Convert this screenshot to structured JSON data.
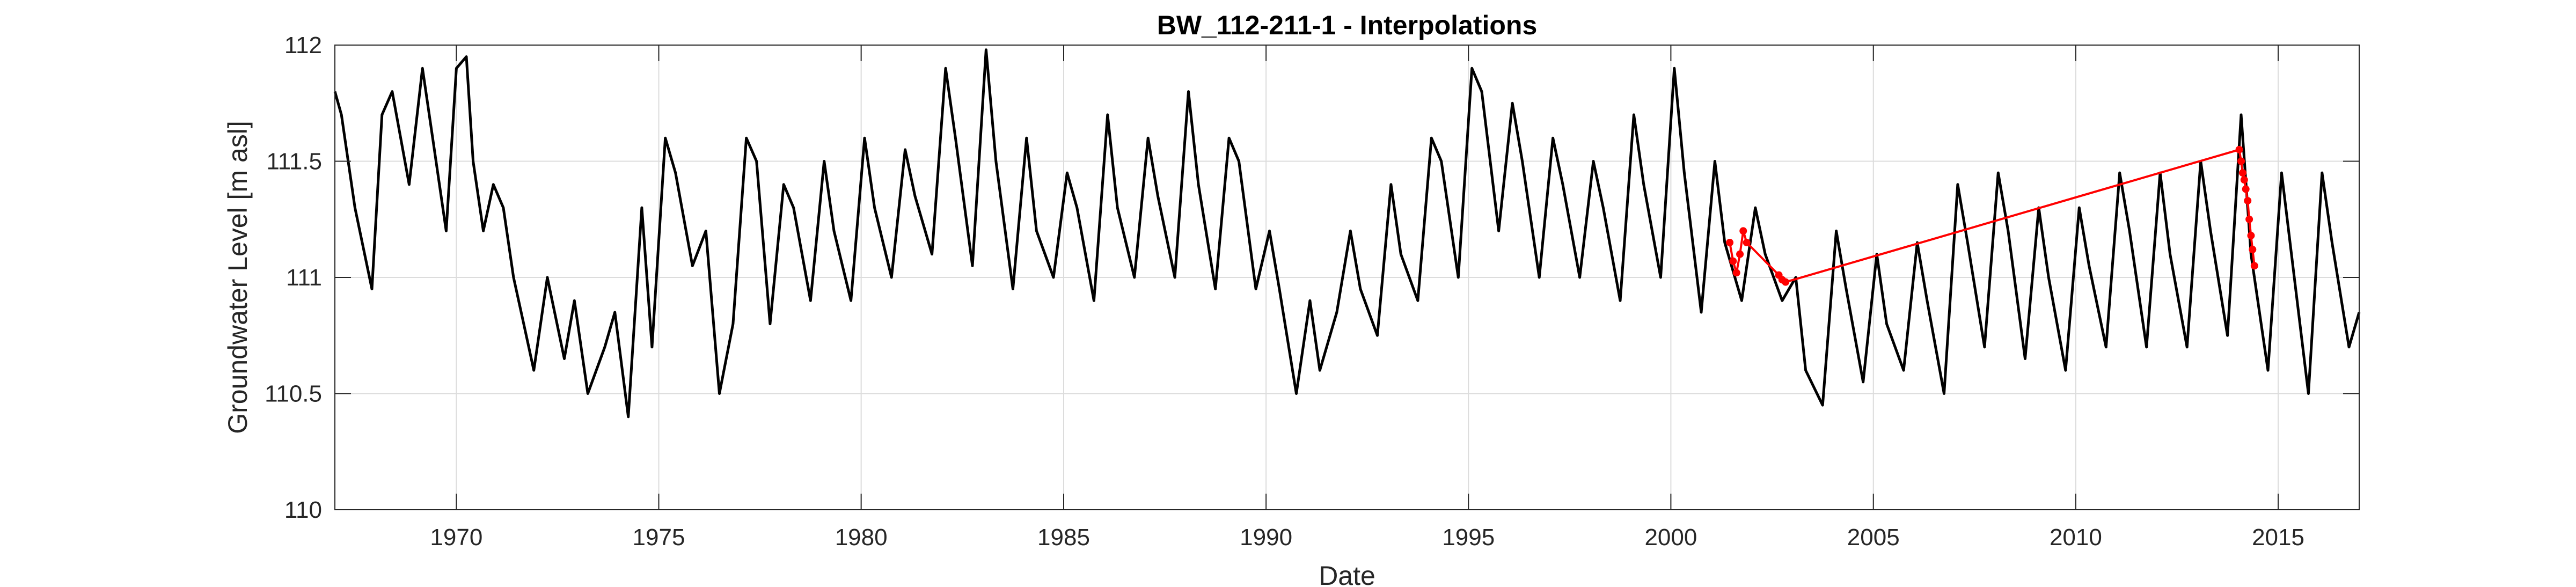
{
  "chart_data": {
    "type": "line",
    "title": "BW_112-211-1 - Interpolations",
    "xlabel": "Date",
    "ylabel": "Groundwater Level [m asl]",
    "x_axis": {
      "type": "date",
      "min": "1967-01-01",
      "max": "2017-01-01"
    },
    "xticks": [
      {
        "value": "1970-01-01",
        "label": "1970"
      },
      {
        "value": "1975-01-01",
        "label": "1975"
      },
      {
        "value": "1980-01-01",
        "label": "1980"
      },
      {
        "value": "1985-01-01",
        "label": "1985"
      },
      {
        "value": "1990-01-01",
        "label": "1990"
      },
      {
        "value": "1995-01-01",
        "label": "1995"
      },
      {
        "value": "2000-01-01",
        "label": "2000"
      },
      {
        "value": "2005-01-01",
        "label": "2005"
      },
      {
        "value": "2010-01-01",
        "label": "2010"
      },
      {
        "value": "2015-01-01",
        "label": "2015"
      }
    ],
    "ylim": [
      110,
      112
    ],
    "yticks": [
      {
        "value": 110,
        "label": "110"
      },
      {
        "value": 110.5,
        "label": "110.5"
      },
      {
        "value": 111,
        "label": "111"
      },
      {
        "value": 111.5,
        "label": "111.5"
      },
      {
        "value": 112,
        "label": "112"
      }
    ],
    "grid": true,
    "colors": {
      "observed": "#000000",
      "interpolated": "#ff0000"
    },
    "series": [
      {
        "role": "observed",
        "style": "line",
        "x": [
          "1967-01-01",
          "1967-03-01",
          "1967-07-01",
          "1967-12-01",
          "1968-03-01",
          "1968-06-01",
          "1968-11-01",
          "1969-03-01",
          "1969-06-01",
          "1969-10-01",
          "1970-01-01",
          "1970-04-01",
          "1970-06-01",
          "1970-09-01",
          "1970-12-01",
          "1971-03-01",
          "1971-06-01",
          "1971-09-01",
          "1971-12-01",
          "1972-04-01",
          "1972-09-01",
          "1972-12-01",
          "1973-04-01",
          "1973-09-01",
          "1973-12-01",
          "1974-04-01",
          "1974-08-01",
          "1974-11-01",
          "1975-03-01",
          "1975-06-01",
          "1975-11-01",
          "1976-03-01",
          "1976-07-01",
          "1976-11-01",
          "1977-03-01",
          "1977-06-01",
          "1977-10-01",
          "1978-02-01",
          "1978-05-01",
          "1978-10-01",
          "1979-02-01",
          "1979-05-01",
          "1979-10-01",
          "1980-02-01",
          "1980-05-01",
          "1980-10-01",
          "1981-02-01",
          "1981-05-01",
          "1981-10-01",
          "1982-02-01",
          "1982-05-01",
          "1982-10-01",
          "1983-02-01",
          "1983-05-01",
          "1983-10-01",
          "1984-02-01",
          "1984-05-01",
          "1984-10-01",
          "1985-02-01",
          "1985-05-01",
          "1985-10-01",
          "1986-02-01",
          "1986-05-01",
          "1986-10-01",
          "1987-02-01",
          "1987-05-01",
          "1987-10-01",
          "1988-02-01",
          "1988-05-01",
          "1988-10-01",
          "1989-02-01",
          "1989-05-01",
          "1989-10-01",
          "1990-02-01",
          "1990-05-01",
          "1990-10-01",
          "1991-02-01",
          "1991-05-01",
          "1991-10-01",
          "1992-02-01",
          "1992-05-01",
          "1992-10-01",
          "1993-02-01",
          "1993-05-01",
          "1993-10-01",
          "1994-02-01",
          "1994-05-01",
          "1994-10-01",
          "1995-02-01",
          "1995-05-01",
          "1995-10-01",
          "1996-02-01",
          "1996-05-01",
          "1996-10-01",
          "1997-02-01",
          "1997-05-01",
          "1997-10-01",
          "1998-02-01",
          "1998-05-01",
          "1998-10-01",
          "1999-02-01",
          "1999-05-01",
          "1999-10-01",
          "2000-02-01",
          "2000-05-01",
          "2000-10-01",
          "2001-02-01",
          "2001-05-01",
          "2001-10-01",
          "2002-02-01",
          "2002-05-01",
          "2002-10-01",
          "2003-02-01",
          "2003-05-01",
          "2003-10-01",
          "2004-02-01",
          "2004-05-01",
          "2004-10-01",
          "2005-02-01",
          "2005-05-01",
          "2005-10-01",
          "2006-02-01",
          "2006-05-01",
          "2006-10-01",
          "2007-02-01",
          "2007-05-01",
          "2007-10-01",
          "2008-02-01",
          "2008-05-01",
          "2008-10-01",
          "2009-02-01",
          "2009-05-01",
          "2009-10-01",
          "2010-02-01",
          "2010-05-01",
          "2010-10-01",
          "2011-02-01",
          "2011-05-01",
          "2011-10-01",
          "2012-02-01",
          "2012-05-01",
          "2012-10-01",
          "2013-02-01",
          "2013-05-01",
          "2013-10-01",
          "2014-02-01",
          "2014-05-01",
          "2014-10-01",
          "2015-02-01",
          "2015-05-01",
          "2015-10-01",
          "2016-02-01",
          "2016-05-01",
          "2016-10-01",
          "2017-01-01"
        ],
        "y": [
          111.8,
          111.7,
          111.3,
          110.95,
          111.7,
          111.8,
          111.4,
          111.9,
          111.6,
          111.2,
          111.9,
          111.95,
          111.5,
          111.2,
          111.4,
          111.3,
          111.0,
          110.8,
          110.6,
          111.0,
          110.65,
          110.9,
          110.5,
          110.7,
          110.85,
          110.4,
          111.3,
          110.7,
          111.6,
          111.45,
          111.05,
          111.2,
          110.5,
          110.8,
          111.6,
          111.5,
          110.8,
          111.4,
          111.3,
          110.9,
          111.5,
          111.2,
          110.9,
          111.6,
          111.3,
          111.0,
          111.55,
          111.35,
          111.1,
          111.9,
          111.6,
          111.05,
          111.98,
          111.5,
          110.95,
          111.6,
          111.2,
          111.0,
          111.45,
          111.3,
          110.9,
          111.7,
          111.3,
          111.0,
          111.6,
          111.35,
          111.0,
          111.8,
          111.4,
          110.95,
          111.6,
          111.5,
          110.95,
          111.2,
          110.95,
          110.5,
          110.9,
          110.6,
          110.85,
          111.2,
          110.95,
          110.75,
          111.4,
          111.1,
          110.9,
          111.6,
          111.5,
          111.0,
          111.9,
          111.8,
          111.2,
          111.75,
          111.5,
          111.0,
          111.6,
          111.4,
          111.0,
          111.5,
          111.3,
          110.9,
          111.7,
          111.4,
          111.0,
          111.9,
          111.45,
          110.85,
          111.5,
          111.15,
          110.9,
          111.3,
          111.1,
          110.9,
          111.0,
          110.6,
          110.45,
          111.2,
          110.95,
          110.55,
          111.1,
          110.8,
          110.6,
          111.15,
          110.9,
          110.5,
          111.4,
          111.15,
          110.7,
          111.45,
          111.2,
          110.65,
          111.3,
          111.0,
          110.6,
          111.3,
          111.05,
          110.7,
          111.45,
          111.2,
          110.7,
          111.45,
          111.1,
          110.7,
          111.5,
          111.2,
          110.75,
          111.7,
          111.1,
          110.6,
          111.45,
          111.1,
          110.5,
          111.45,
          111.15,
          110.7,
          110.85
        ]
      },
      {
        "role": "interpolated",
        "style": "markers",
        "x": [
          "2001-06-15",
          "2001-07-15",
          "2001-08-15",
          "2001-09-15",
          "2001-10-15",
          "2001-11-15",
          "2002-09-01",
          "2002-10-01",
          "2002-11-01",
          "2014-01-15",
          "2014-02-01",
          "2014-02-15",
          "2014-03-01",
          "2014-03-15",
          "2014-04-01",
          "2014-04-15",
          "2014-05-01",
          "2014-05-15",
          "2014-06-01"
        ],
        "y": [
          111.15,
          111.07,
          111.02,
          111.1,
          111.2,
          111.15,
          111.01,
          110.99,
          110.98,
          111.55,
          111.5,
          111.45,
          111.42,
          111.38,
          111.33,
          111.25,
          111.18,
          111.12,
          111.05
        ]
      }
    ]
  }
}
